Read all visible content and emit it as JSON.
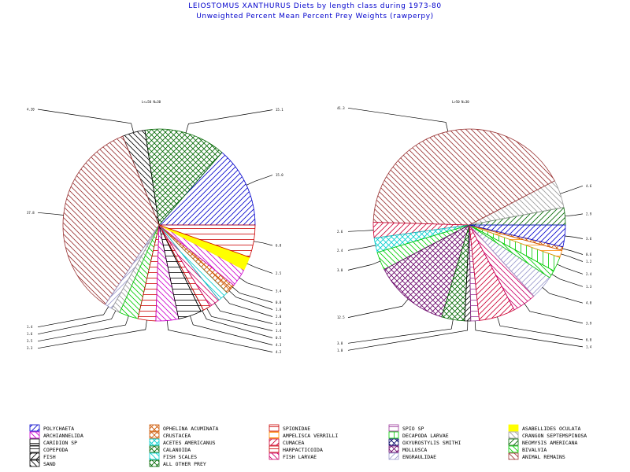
{
  "title": "LEIOSTOMUS XANTHURUS Diets by length class during 1973-80",
  "subtitle": "Unweighted Percent Mean Percent Prey  Weights (rawperpy)",
  "categories": [
    {
      "name": "POLYCHAETA",
      "color": "#0000cc",
      "pattern": "diag-r"
    },
    {
      "name": "OPHELINA ACUMINATA",
      "color": "#cc5500",
      "pattern": "cross"
    },
    {
      "name": "SPIONIDAE",
      "color": "#cc0000",
      "pattern": "horiz"
    },
    {
      "name": "SPIO SP",
      "color": "#993399",
      "pattern": "horiz"
    },
    {
      "name": "ASABELLIDES OCULATA",
      "color": "#ffff00",
      "pattern": "solid"
    },
    {
      "name": "ARCHIANNELIDA",
      "color": "#cc00cc",
      "pattern": "diag-l"
    },
    {
      "name": "CRUSTACEA",
      "color": "#cc5500",
      "pattern": "cross"
    },
    {
      "name": "AMPELISCA VERRILLI",
      "color": "#ff8800",
      "pattern": "horiz"
    },
    {
      "name": "DECAPODA LARVAE",
      "color": "#00cc00",
      "pattern": "vert"
    },
    {
      "name": "CRANGON SEPTEMSPINOSA",
      "color": "#999999",
      "pattern": "diag-l"
    },
    {
      "name": "CARIDION SP",
      "color": "#000000",
      "pattern": "horiz"
    },
    {
      "name": "ACETES AMERICANUS",
      "color": "#00cccc",
      "pattern": "cross"
    },
    {
      "name": "CUMACEA",
      "color": "#cc0033",
      "pattern": "diag-r"
    },
    {
      "name": "OXYUROSTYLIS SMITHI",
      "color": "#000066",
      "pattern": "cross"
    },
    {
      "name": "NEOMYSIS AMERICANA",
      "color": "#006600",
      "pattern": "diag-r"
    },
    {
      "name": "COPEPODA",
      "color": "#000000",
      "pattern": "horiz"
    },
    {
      "name": "CALANOIDA",
      "color": "#006600",
      "pattern": "cross"
    },
    {
      "name": "HARPACTICOIDA",
      "color": "#cc0000",
      "pattern": "horiz"
    },
    {
      "name": "MOLLUSCA",
      "color": "#660066",
      "pattern": "cross"
    },
    {
      "name": "BIVALVIA",
      "color": "#00cc00",
      "pattern": "diag-l"
    },
    {
      "name": "FISH",
      "color": "#000000",
      "pattern": "diag-r"
    },
    {
      "name": "FISH SCALES",
      "color": "#00cccc",
      "pattern": "diag-l"
    },
    {
      "name": "FISH LARVAE",
      "color": "#cc0066",
      "pattern": "diag-l"
    },
    {
      "name": "ENGRAULIDAE",
      "color": "#9999cc",
      "pattern": "diag-r"
    },
    {
      "name": "ANIMAL REMAINS",
      "color": "#993333",
      "pattern": "diag-l"
    },
    {
      "name": "SAND",
      "color": "#000000",
      "pattern": "diag-l"
    },
    {
      "name": "ALL OTHER PREY",
      "color": "#006600",
      "pattern": "cross"
    }
  ],
  "chart_data": [
    {
      "type": "pie",
      "title": "LEIOSTOMUS XANTHURUS Diets by length class during 1973-80",
      "header": "L<=50 N=30",
      "start_angle_deg": 0,
      "slices": [
        {
          "category": "POLYCHAETA",
          "value": 15.0,
          "label": "15.0"
        },
        {
          "category": "ALL OTHER PREY",
          "value": 15.1,
          "label": "15.1"
        },
        {
          "category": "SAND",
          "value": 4.2,
          "label": "4.20"
        },
        {
          "category": "ANIMAL REMAINS",
          "value": 37.8,
          "label": "37.8"
        },
        {
          "category": "ENGRAULIDAE",
          "value": 1.4,
          "label": "1.4"
        },
        {
          "category": "CRANGON SEPTEMSPINOSA",
          "value": 1.6,
          "label": "1.6"
        },
        {
          "category": "BIVALVIA",
          "value": 3.5,
          "label": "3.5"
        },
        {
          "category": "HARPACTICOIDA",
          "value": 3.3,
          "label": "3.3"
        },
        {
          "category": "ARCHIANNELIDA",
          "value": 4.2,
          "label": "4.2"
        },
        {
          "category": "COPEPODA",
          "value": 4.3,
          "label": "4.3"
        },
        {
          "category": "CARIDION SP",
          "value": 0.5,
          "label": "0.5"
        },
        {
          "category": "SPIONIDAE",
          "value": 1.4,
          "label": "1.4"
        },
        {
          "category": "FISH LARVAE",
          "value": 2.0,
          "label": "2.0"
        },
        {
          "category": "FISH SCALES",
          "value": 2.0,
          "label": "2.0"
        },
        {
          "category": "CRUSTACEA",
          "value": 1.0,
          "label": "1.0"
        },
        {
          "category": "OPHELINA ACUMINATA",
          "value": 0.8,
          "label": "0.8"
        },
        {
          "category": "ARCHIANNELIDA",
          "value": 3.4,
          "label": "3.4"
        },
        {
          "category": "ASABELLIDES OCULATA",
          "value": 2.5,
          "label": "2.5"
        },
        {
          "category": "SPIONIDAE",
          "value": 6.0,
          "label": "6.0"
        }
      ]
    },
    {
      "type": "pie",
      "header": "L>50 N=30",
      "start_angle_deg": 0,
      "slices": [
        {
          "category": "NEOMYSIS AMERICANA",
          "value": 2.9,
          "label": "2.9"
        },
        {
          "category": "CRANGON SEPTEMSPINOSA",
          "value": 4.6,
          "label": "4.6"
        },
        {
          "category": "ANIMAL REMAINS",
          "value": 41.3,
          "label": "41.3"
        },
        {
          "category": "CUMACEA",
          "value": 2.6,
          "label": "2.6"
        },
        {
          "category": "ACETES AMERICANUS",
          "value": 2.4,
          "label": "2.4"
        },
        {
          "category": "BIVALVIA",
          "value": 3.0,
          "label": "3.0"
        },
        {
          "category": "MOLLUSCA",
          "value": 12.5,
          "label": "12.5"
        },
        {
          "category": "CALANOIDA",
          "value": 3.8,
          "label": "3.8"
        },
        {
          "category": "FISH",
          "value": 1.0,
          "label": "1.0"
        },
        {
          "category": "SPIO SP",
          "value": 1.4,
          "label": "1.4"
        },
        {
          "category": "CUMACEA",
          "value": 6.0,
          "label": "6.0"
        },
        {
          "category": "FISH LARVAE",
          "value": 3.9,
          "label": "3.9"
        },
        {
          "category": "ENGRAULIDAE",
          "value": 4.0,
          "label": "4.0"
        },
        {
          "category": "BIVALVIA",
          "value": 1.3,
          "label": "1.3"
        },
        {
          "category": "DECAPODA LARVAE",
          "value": 2.4,
          "label": "2.4"
        },
        {
          "category": "AMPELISCA VERRILLI",
          "value": 1.2,
          "label": "1.2"
        },
        {
          "category": "OPHELINA ACUMINATA",
          "value": 0.6,
          "label": "0.6"
        },
        {
          "category": "POLYCHAETA",
          "value": 3.6,
          "label": "3.6"
        }
      ]
    }
  ]
}
